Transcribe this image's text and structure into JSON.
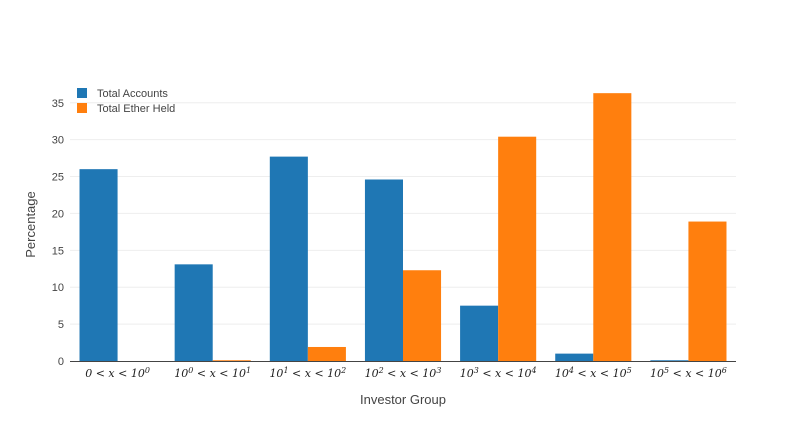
{
  "chart_data": {
    "type": "bar",
    "title": "",
    "xlabel": "Investor Group",
    "ylabel": "Percentage",
    "categories": [
      "0 < x < 10^0",
      "10^0 < x < 10^1",
      "10^1 < x < 10^2",
      "10^2 < x < 10^3",
      "10^3 < x < 10^4",
      "10^4 < x < 10^5",
      "10^5 < x < 10^6"
    ],
    "category_parts": [
      {
        "lo": "0",
        "lo_exp": "",
        "hi": "10",
        "hi_exp": "0"
      },
      {
        "lo": "10",
        "lo_exp": "0",
        "hi": "10",
        "hi_exp": "1"
      },
      {
        "lo": "10",
        "lo_exp": "1",
        "hi": "10",
        "hi_exp": "2"
      },
      {
        "lo": "10",
        "lo_exp": "2",
        "hi": "10",
        "hi_exp": "3"
      },
      {
        "lo": "10",
        "lo_exp": "3",
        "hi": "10",
        "hi_exp": "4"
      },
      {
        "lo": "10",
        "lo_exp": "4",
        "hi": "10",
        "hi_exp": "5"
      },
      {
        "lo": "10",
        "lo_exp": "5",
        "hi": "10",
        "hi_exp": "6"
      }
    ],
    "series": [
      {
        "name": "Total Accounts",
        "color": "#1f77b4",
        "values": [
          26.0,
          13.1,
          27.7,
          24.6,
          7.5,
          1.0,
          0.1
        ]
      },
      {
        "name": "Total Ether Held",
        "color": "#ff7f0e",
        "values": [
          0.0,
          0.1,
          1.9,
          12.3,
          30.4,
          36.3,
          18.9
        ]
      }
    ],
    "ylim": [
      0,
      37
    ],
    "yticks": [
      0,
      5,
      10,
      15,
      20,
      25,
      30,
      35
    ],
    "grid": true,
    "legend": "top-left"
  }
}
